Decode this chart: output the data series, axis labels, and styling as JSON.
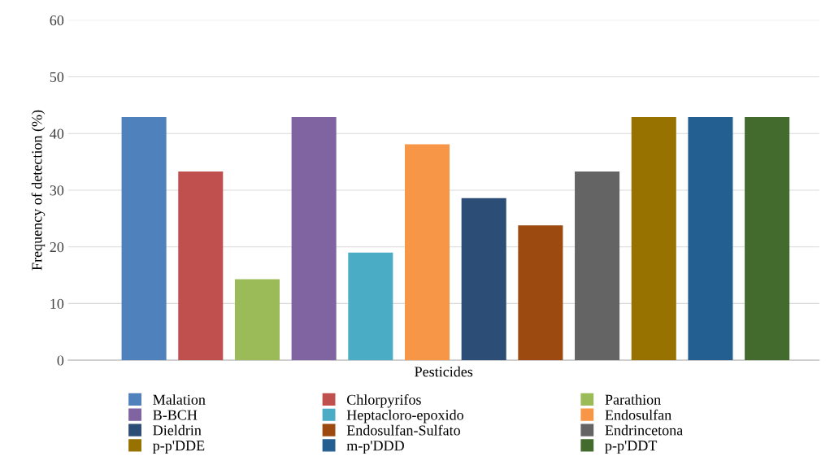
{
  "chart_data": {
    "type": "bar",
    "xlabel": "Pesticides",
    "ylabel": "Frequency of detection (%)",
    "categories": [
      null
    ],
    "ylim": [
      0,
      60
    ],
    "yticks": [
      0,
      10,
      20,
      30,
      40,
      50,
      60
    ],
    "grid": "y",
    "legend": "bottom",
    "series": [
      {
        "name": "Malation",
        "color": "#4f81bd",
        "values": [
          42.9
        ]
      },
      {
        "name": "Chlorpyrifos",
        "color": "#c0504d",
        "values": [
          33.3
        ]
      },
      {
        "name": "Parathion",
        "color": "#9bbb59",
        "values": [
          14.3
        ]
      },
      {
        "name": "B-BCH",
        "color": "#8064a2",
        "values": [
          42.9
        ]
      },
      {
        "name": "Heptacloro-epoxido",
        "color": "#4bacc6",
        "values": [
          19.0
        ]
      },
      {
        "name": "Endosulfan",
        "color": "#f79646",
        "values": [
          38.1
        ]
      },
      {
        "name": "Dieldrin",
        "color": "#2c4d75",
        "values": [
          28.6
        ]
      },
      {
        "name": "Endosulfan-Sulfato",
        "color": "#9c4a10",
        "values": [
          23.8
        ]
      },
      {
        "name": "Endrincetona",
        "color": "#646464",
        "values": [
          33.3
        ]
      },
      {
        "name": "p-p'DDE",
        "color": "#977200",
        "values": [
          42.9
        ]
      },
      {
        "name": "m-p'DDD",
        "color": "#245f91",
        "values": [
          42.9
        ]
      },
      {
        "name": "p-p'DDT",
        "color": "#436b2d",
        "values": [
          42.9
        ]
      }
    ]
  }
}
